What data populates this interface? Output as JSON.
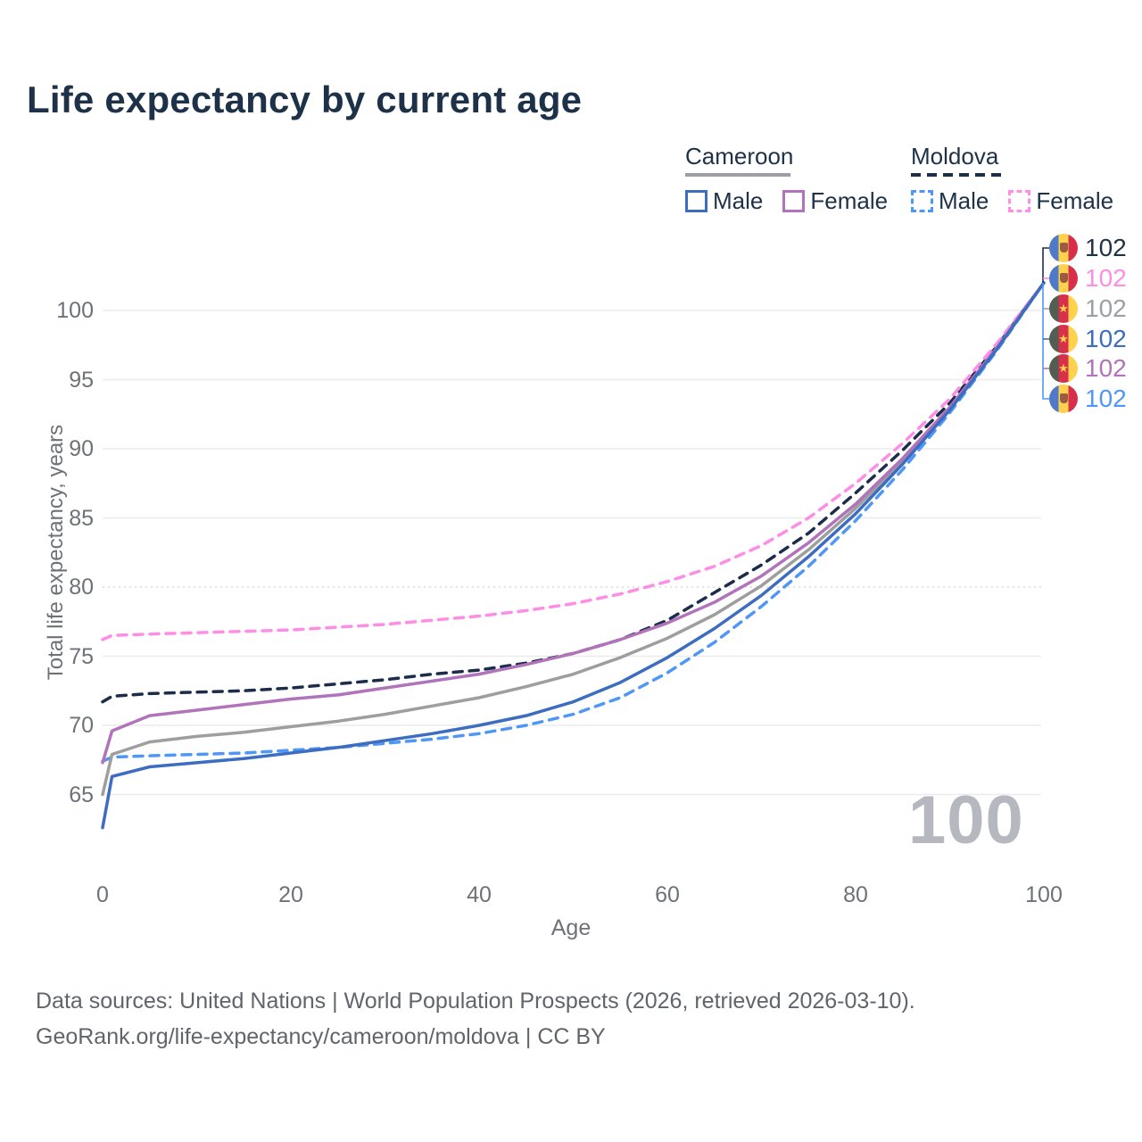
{
  "title": "Life expectancy by current age",
  "watermark_age": "100",
  "legend": {
    "groups": [
      {
        "country": "Cameroon",
        "line_style": "solid",
        "underline_color": "#9aa0a6",
        "male_label": "Male",
        "female_label": "Female",
        "male_color": "#3c6dc0",
        "female_color": "#b173b9"
      },
      {
        "country": "Moldova",
        "line_style": "dashed",
        "underline_color": "#1d3048",
        "male_label": "Male",
        "female_label": "Female",
        "male_color": "#4f97f7",
        "female_color": "#fd8de5"
      }
    ]
  },
  "chart_data": {
    "type": "line",
    "title": "Life expectancy by current age",
    "xlabel": "Age",
    "ylabel": "Total life expectancy, years",
    "x_ticks": [
      0,
      20,
      40,
      60,
      80,
      100
    ],
    "y_ticks": [
      65,
      70,
      75,
      80,
      85,
      90,
      95,
      100
    ],
    "xlim": [
      0,
      100
    ],
    "ylim": [
      62,
      103
    ],
    "grid": "horizontal",
    "legend_position": "top-right",
    "x": [
      0,
      1,
      5,
      10,
      15,
      20,
      25,
      30,
      35,
      40,
      45,
      50,
      55,
      60,
      65,
      70,
      75,
      80,
      85,
      90,
      95,
      100
    ],
    "series": [
      {
        "name": "Moldova Total",
        "country": "Moldova",
        "color": "#1b2d4a",
        "dashed": true,
        "values": [
          71.7,
          72.1,
          72.3,
          72.4,
          72.5,
          72.7,
          73.0,
          73.3,
          73.7,
          74.0,
          74.5,
          75.2,
          76.2,
          77.6,
          79.6,
          81.6,
          83.9,
          86.8,
          89.9,
          93.3,
          97.4,
          102
        ]
      },
      {
        "name": "Moldova Female",
        "country": "Moldova",
        "color": "#fd8de5",
        "dashed": true,
        "values": [
          76.2,
          76.5,
          76.6,
          76.7,
          76.8,
          76.9,
          77.1,
          77.3,
          77.6,
          77.9,
          78.3,
          78.8,
          79.5,
          80.4,
          81.5,
          83.0,
          85.0,
          87.5,
          90.4,
          93.6,
          97.6,
          102
        ]
      },
      {
        "name": "Moldova Male",
        "country": "Moldova",
        "color": "#4f97f7",
        "dashed": true,
        "values": [
          67.4,
          67.7,
          67.8,
          67.9,
          68.0,
          68.2,
          68.4,
          68.7,
          69.0,
          69.4,
          70.0,
          70.8,
          72.0,
          73.8,
          76.0,
          78.6,
          81.5,
          84.8,
          88.5,
          92.6,
          97.1,
          102
        ]
      },
      {
        "name": "Cameroon Total",
        "country": "Cameroon",
        "color": "#9e9e9e",
        "dashed": false,
        "values": [
          65.0,
          67.9,
          68.8,
          69.2,
          69.5,
          69.9,
          70.3,
          70.8,
          71.4,
          72.0,
          72.8,
          73.7,
          74.9,
          76.3,
          78.0,
          80.1,
          82.7,
          85.7,
          89.1,
          92.9,
          97.2,
          102
        ]
      },
      {
        "name": "Cameroon Female",
        "country": "Cameroon",
        "color": "#b173b9",
        "dashed": false,
        "values": [
          67.3,
          69.6,
          70.7,
          71.1,
          71.5,
          71.9,
          72.2,
          72.7,
          73.2,
          73.7,
          74.4,
          75.2,
          76.2,
          77.4,
          78.9,
          80.8,
          83.2,
          86.0,
          89.3,
          93.0,
          97.3,
          102
        ]
      },
      {
        "name": "Cameroon Male",
        "country": "Cameroon",
        "color": "#3c6dc0",
        "dashed": false,
        "values": [
          62.6,
          66.3,
          67.0,
          67.3,
          67.6,
          68.0,
          68.4,
          68.9,
          69.4,
          70.0,
          70.7,
          71.7,
          73.1,
          74.9,
          77.0,
          79.4,
          82.2,
          85.3,
          88.9,
          92.8,
          97.2,
          102
        ]
      }
    ]
  },
  "end_labels": [
    {
      "value": "102",
      "flag": "moldova",
      "series": "Moldova Total",
      "color": "#1d3148"
    },
    {
      "value": "102",
      "flag": "moldova",
      "series": "Moldova Female",
      "color": "#fd8de5"
    },
    {
      "value": "102",
      "flag": "cameroon",
      "series": "Cameroon Total",
      "color": "#9aa0a6"
    },
    {
      "value": "102",
      "flag": "cameroon",
      "series": "Cameroon Male",
      "color": "#3c6dc0"
    },
    {
      "value": "102",
      "flag": "cameroon",
      "series": "Cameroon Female",
      "color": "#b173b9"
    },
    {
      "value": "102",
      "flag": "moldova",
      "series": "Moldova Male",
      "color": "#4f97f7"
    }
  ],
  "flags": {
    "moldova": {
      "stripes": [
        "#4e7ac9",
        "#ffd24d",
        "#d8304a"
      ],
      "emblem": "coat-of-arms"
    },
    "cameroon": {
      "stripes": [
        "#515e51",
        "#d8304a",
        "#ffd24d"
      ],
      "emblem": "star"
    }
  },
  "footer": {
    "line1": "Data sources: United Nations | World Population Prospects (2026, retrieved 2026-03-10).",
    "line2": "GeoRank.org/life-expectancy/cameroon/moldova | CC BY"
  }
}
